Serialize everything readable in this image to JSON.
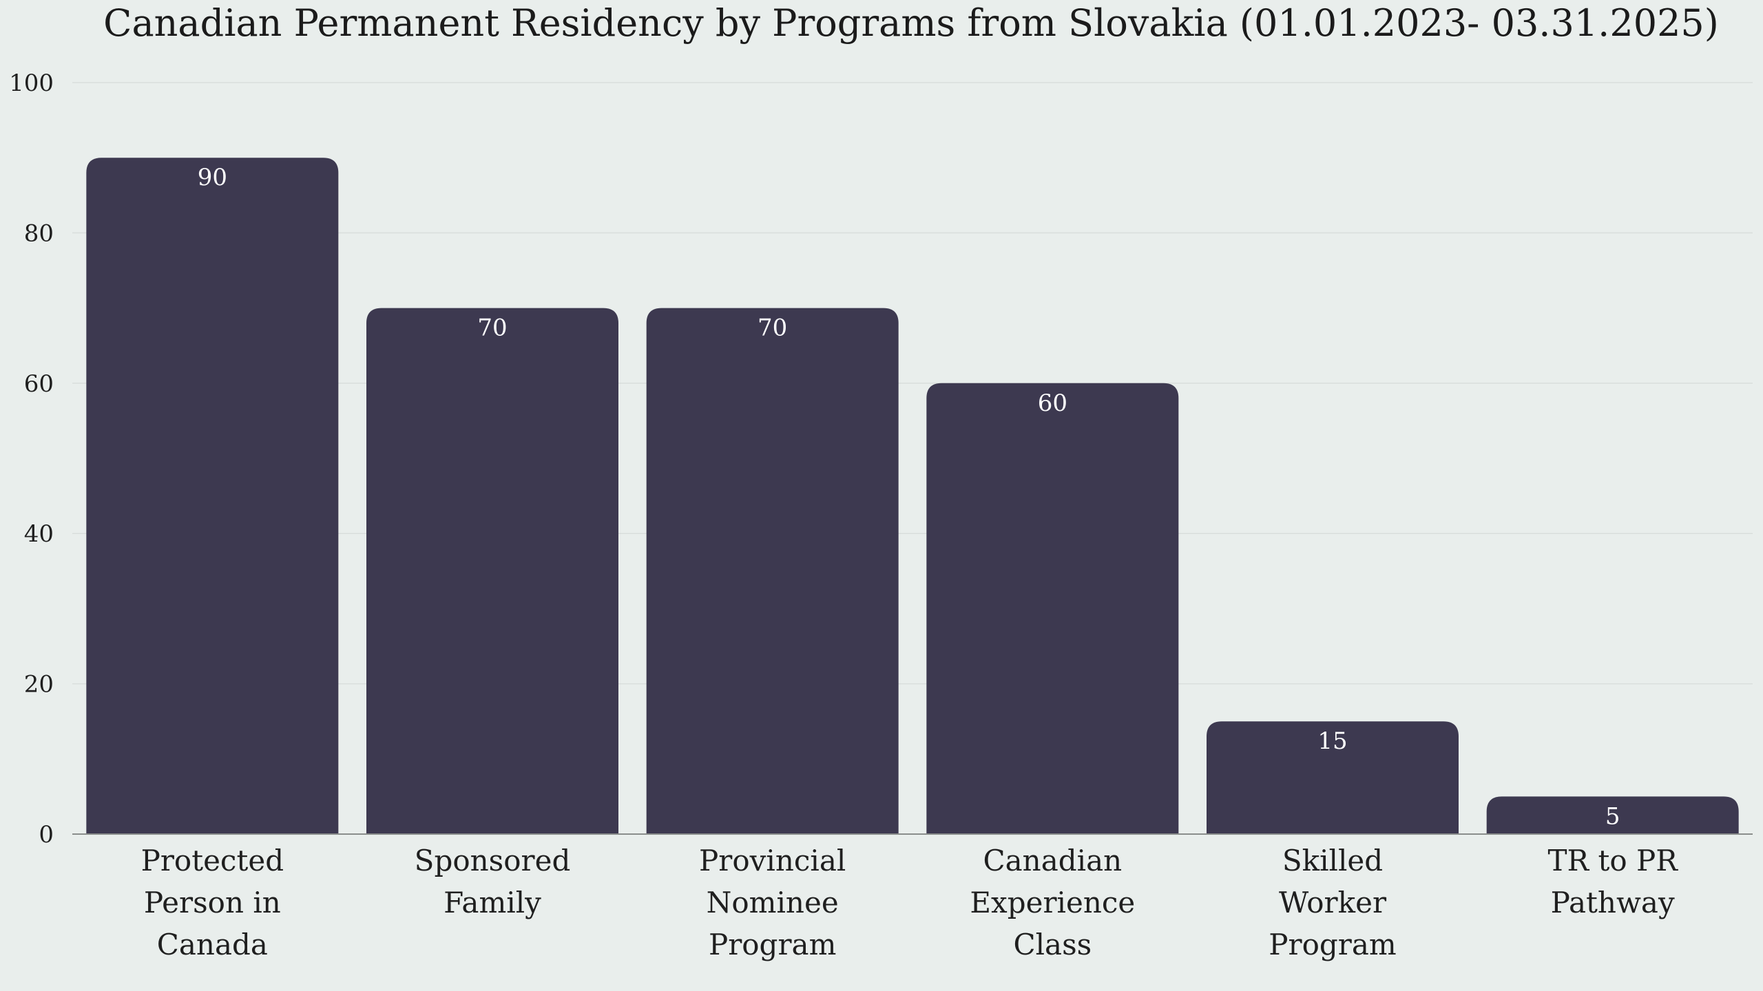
{
  "colors": {
    "background": "#e9eeec",
    "bar": "#3d3950",
    "grid": "#d9dedc",
    "axis": "#8a8e8c"
  },
  "chart_data": {
    "type": "bar",
    "title": "Canadian Permanent Residency by Programs from Slovakia (01.01.2023- 03.31.2025)",
    "xlabel": "",
    "ylabel": "",
    "categories": [
      [
        "Protected",
        "Person in",
        "Canada"
      ],
      [
        "Sponsored",
        "Family"
      ],
      [
        "Provincial",
        "Nominee",
        "Program"
      ],
      [
        "Canadian",
        "Experience",
        "Class"
      ],
      [
        "Skilled",
        "Worker",
        "Program"
      ],
      [
        "TR to PR",
        "Pathway"
      ]
    ],
    "values": [
      90,
      70,
      70,
      60,
      15,
      5
    ],
    "ylim": [
      0,
      100
    ],
    "yticks": [
      0,
      20,
      40,
      60,
      80,
      100
    ],
    "grid": true,
    "legend": "none"
  }
}
